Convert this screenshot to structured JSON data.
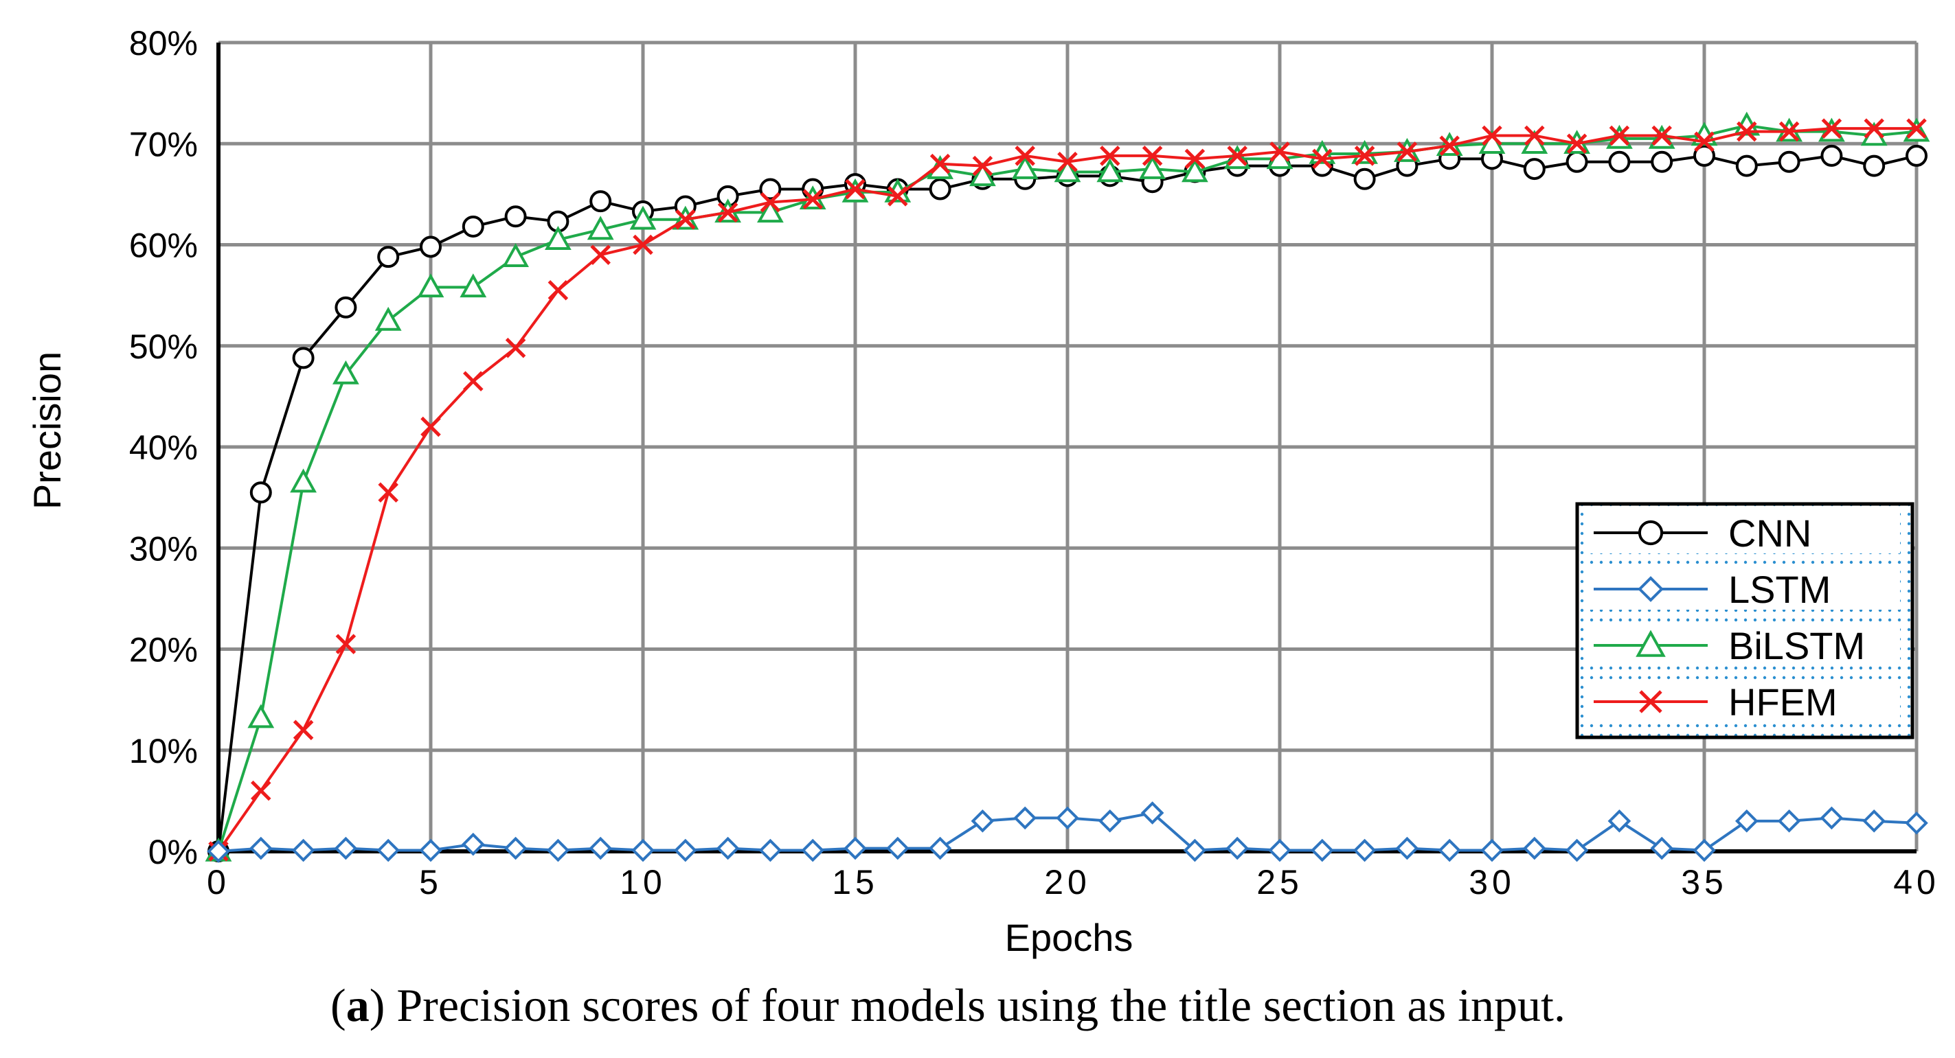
{
  "chart_data": {
    "type": "line",
    "xlabel": "Epochs",
    "ylabel": "Precision",
    "xlim": [
      0,
      40
    ],
    "ylim": [
      0,
      80
    ],
    "x_ticks": [
      "0",
      "5",
      "10",
      "15",
      "20",
      "25",
      "30",
      "35",
      "40"
    ],
    "y_ticks": [
      "0%",
      "10%",
      "20%",
      "30%",
      "40%",
      "50%",
      "60%",
      "70%",
      "80%"
    ],
    "grid": true,
    "legend_position": "right",
    "x": [
      0,
      1,
      2,
      3,
      4,
      5,
      6,
      7,
      8,
      9,
      10,
      11,
      12,
      13,
      14,
      15,
      16,
      17,
      18,
      19,
      20,
      21,
      22,
      23,
      24,
      25,
      26,
      27,
      28,
      29,
      30,
      31,
      32,
      33,
      34,
      35,
      36,
      37,
      38,
      39,
      40
    ],
    "series": [
      {
        "name": "CNN",
        "color": "#000000",
        "marker": "circle",
        "values": [
          0,
          35.5,
          48.8,
          53.8,
          58.8,
          59.8,
          61.8,
          62.8,
          62.3,
          64.3,
          63.3,
          63.8,
          64.8,
          65.5,
          65.5,
          66.0,
          65.5,
          65.5,
          66.5,
          66.5,
          66.8,
          66.8,
          66.2,
          67.2,
          67.8,
          67.8,
          67.8,
          66.5,
          67.8,
          68.5,
          68.5,
          67.5,
          68.2,
          68.2,
          68.2,
          68.8,
          67.8,
          68.2,
          68.8,
          67.8,
          68.8
        ]
      },
      {
        "name": "LSTM",
        "color": "#2e75c0",
        "marker": "diamond",
        "values": [
          0,
          0.3,
          0.1,
          0.3,
          0.1,
          0.1,
          0.7,
          0.3,
          0.1,
          0.3,
          0.1,
          0.1,
          0.3,
          0.1,
          0.1,
          0.3,
          0.3,
          0.3,
          3.0,
          3.3,
          3.3,
          3.0,
          3.8,
          0.1,
          0.3,
          0.1,
          0.1,
          0.1,
          0.3,
          0.1,
          0.1,
          0.3,
          0.1,
          3.0,
          0.3,
          0.1,
          3.0,
          3.0,
          3.3,
          3.0,
          2.8
        ]
      },
      {
        "name": "BiLSTM",
        "color": "#1faa4a",
        "marker": "triangle",
        "values": [
          0,
          13.2,
          36.5,
          47.2,
          52.5,
          55.8,
          55.8,
          58.8,
          60.5,
          61.5,
          62.5,
          62.5,
          63.2,
          63.2,
          64.5,
          65.2,
          65.2,
          67.5,
          66.8,
          67.5,
          67.2,
          67.2,
          67.5,
          67.2,
          68.5,
          68.5,
          69.0,
          69.0,
          69.2,
          69.8,
          70.0,
          70.0,
          70.0,
          70.5,
          70.5,
          70.8,
          71.8,
          71.2,
          71.2,
          70.8,
          71.2
        ]
      },
      {
        "name": "HFEM",
        "color": "#ee1c1c",
        "marker": "x",
        "values": [
          0,
          6.0,
          12.0,
          20.5,
          35.5,
          42.0,
          46.5,
          49.8,
          55.5,
          59.0,
          60.0,
          62.5,
          63.2,
          64.2,
          64.5,
          65.5,
          64.8,
          68.0,
          67.8,
          68.8,
          68.2,
          68.8,
          68.8,
          68.5,
          68.8,
          69.2,
          68.5,
          68.8,
          69.2,
          69.8,
          70.8,
          70.8,
          70.0,
          70.8,
          70.8,
          70.2,
          71.2,
          71.2,
          71.5,
          71.5,
          71.5
        ]
      }
    ]
  },
  "caption": {
    "label": "a",
    "text": "Precision scores of four models using the title section as input."
  }
}
